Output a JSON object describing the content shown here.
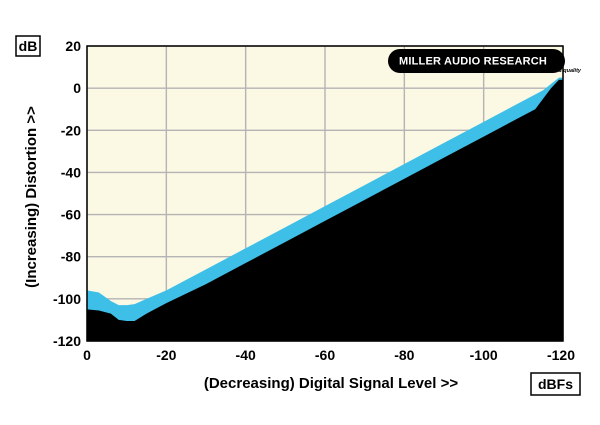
{
  "chart_data": {
    "type": "area",
    "xlabel": "(Decreasing) Digital Signal Level >>",
    "ylabel": "(Increasing) Distortion >>",
    "x_unit": "dBFs",
    "y_unit": "dB",
    "xlim": [
      0,
      -120
    ],
    "ylim": [
      -120,
      20
    ],
    "x_ticks": [
      0,
      -20,
      -40,
      -60,
      -80,
      -100,
      -120
    ],
    "y_ticks": [
      20,
      0,
      -20,
      -40,
      -60,
      -80,
      -100,
      -120
    ],
    "x_tick_labels": [
      "0",
      "-20",
      "-40",
      "-60",
      "-80",
      "-100",
      "-120"
    ],
    "y_tick_labels": [
      "20",
      "0",
      "-20",
      "-40",
      "-60",
      "-80",
      "-100",
      "-120"
    ],
    "grid": true,
    "logo": {
      "text": "MILLER AUDIO RESEARCH",
      "tagline": "setting the measure of sound quality"
    },
    "colors": {
      "plot_background": "#fbf8e3",
      "band": "#3dbfe8",
      "floor": "#000000",
      "grid": "#b4b4b4"
    },
    "series": [
      {
        "role": "band-upper",
        "x": [
          0,
          -3,
          -6,
          -8,
          -10,
          -12,
          -15,
          -20,
          -30,
          -40,
          -50,
          -60,
          -70,
          -80,
          -90,
          -100,
          -110,
          -115,
          -117,
          -119,
          -120
        ],
        "y": [
          -96,
          -97,
          -101,
          -103,
          -103,
          -102.5,
          -100,
          -96,
          -86,
          -76,
          -66,
          -56,
          -46,
          -36,
          -26,
          -16,
          -6,
          -1,
          2,
          5,
          5
        ]
      },
      {
        "role": "band-lower",
        "x": [
          0,
          -3,
          -6,
          -8,
          -10,
          -12,
          -15,
          -20,
          -30,
          -40,
          -50,
          -60,
          -70,
          -80,
          -90,
          -100,
          -110,
          -113,
          -115,
          -117,
          -119,
          -120
        ],
        "y": [
          -105,
          -105.5,
          -107,
          -110,
          -110.5,
          -110.5,
          -107,
          -102,
          -93,
          -83,
          -73,
          -63,
          -53,
          -43,
          -33,
          -23,
          -13,
          -10,
          -5,
          0,
          4,
          4
        ]
      }
    ]
  }
}
